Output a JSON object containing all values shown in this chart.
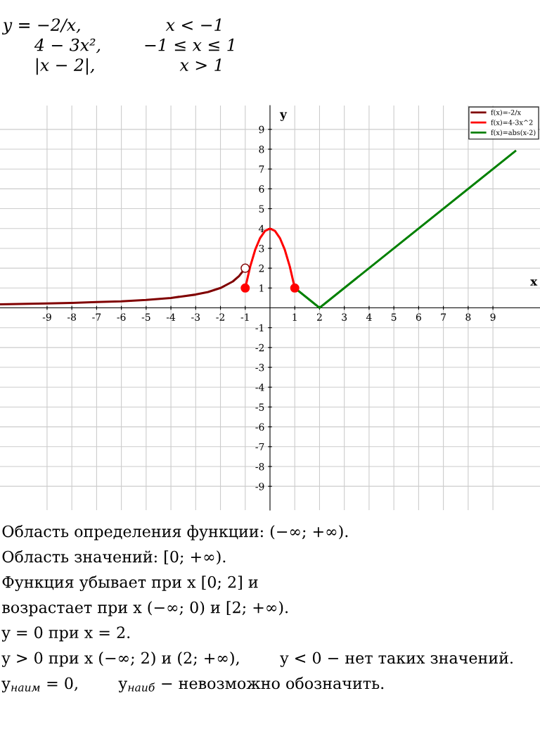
{
  "chart_data": {
    "type": "line",
    "title": "y = −2/x,                x < −1\n      4 − 3x²,        −1 ≤ x ≤ 1\n      |x − 2|,                x > 1",
    "xlabel": "x",
    "ylabel": "y",
    "xlim": [
      -10.9,
      10.9
    ],
    "ylim": [
      -10.2,
      10.2
    ],
    "xticks": [
      -9,
      -8,
      -7,
      -6,
      -5,
      -4,
      -3,
      -2,
      -1,
      1,
      2,
      3,
      4,
      5,
      6,
      7,
      8,
      9
    ],
    "yticks": [
      -9,
      -8,
      -7,
      -6,
      -5,
      -4,
      -3,
      -2,
      -1,
      1,
      2,
      3,
      4,
      5,
      6,
      7,
      8,
      9
    ],
    "grid": true,
    "legend": "top right",
    "marker": "none",
    "line_style": "solid",
    "series": [
      {
        "name": "f(x)=-2/x",
        "color": "#800000",
        "x": [
          -10.9,
          -9,
          -8,
          -7,
          -6,
          -5,
          -4,
          -3,
          -2.5,
          -2,
          -1.5,
          -1.25,
          -1
        ],
        "values": [
          0.18,
          0.22,
          0.25,
          0.29,
          0.33,
          0.4,
          0.5,
          0.67,
          0.8,
          1,
          1.33,
          1.6,
          2
        ]
      },
      {
        "name": "f(x)=4-3x^2",
        "color": "#ff0000",
        "x": [
          -1,
          -0.8,
          -0.6,
          -0.4,
          -0.2,
          0,
          0.2,
          0.4,
          0.6,
          0.8,
          1
        ],
        "values": [
          1,
          2.08,
          2.92,
          3.52,
          3.88,
          4,
          3.88,
          3.52,
          2.92,
          2.08,
          1
        ]
      },
      {
        "name": "f(x)=abs(x-2)",
        "color": "#008000",
        "x": [
          1,
          2,
          9.9
        ],
        "values": [
          1,
          0,
          7.9
        ]
      },
      {
        "type": "scatter",
        "marker": "circle",
        "color": "#ff0000",
        "x": [
          -1,
          1
        ],
        "values": [
          1,
          1
        ]
      },
      {
        "type": "scatter",
        "marker": "circle",
        "color": "#ffffff",
        "x": [
          -1
        ],
        "values": [
          2
        ]
      }
    ],
    "annotations": [
      "Область определения функции: (−∞; +∞).",
      "Область значений: [0; +∞).",
      "Функция убывает при x [0; 2] и",
      "возрастает при x (−∞; 0) и [2; +∞).",
      "y = 0 при x = 2.",
      "y > 0 при x (−∞; 2) и (2; +∞),        y < 0 − нет таких значений.",
      "y$_{наим}$ = 0,        y$_{наиб}$ − невозможно обозначить."
    ]
  }
}
